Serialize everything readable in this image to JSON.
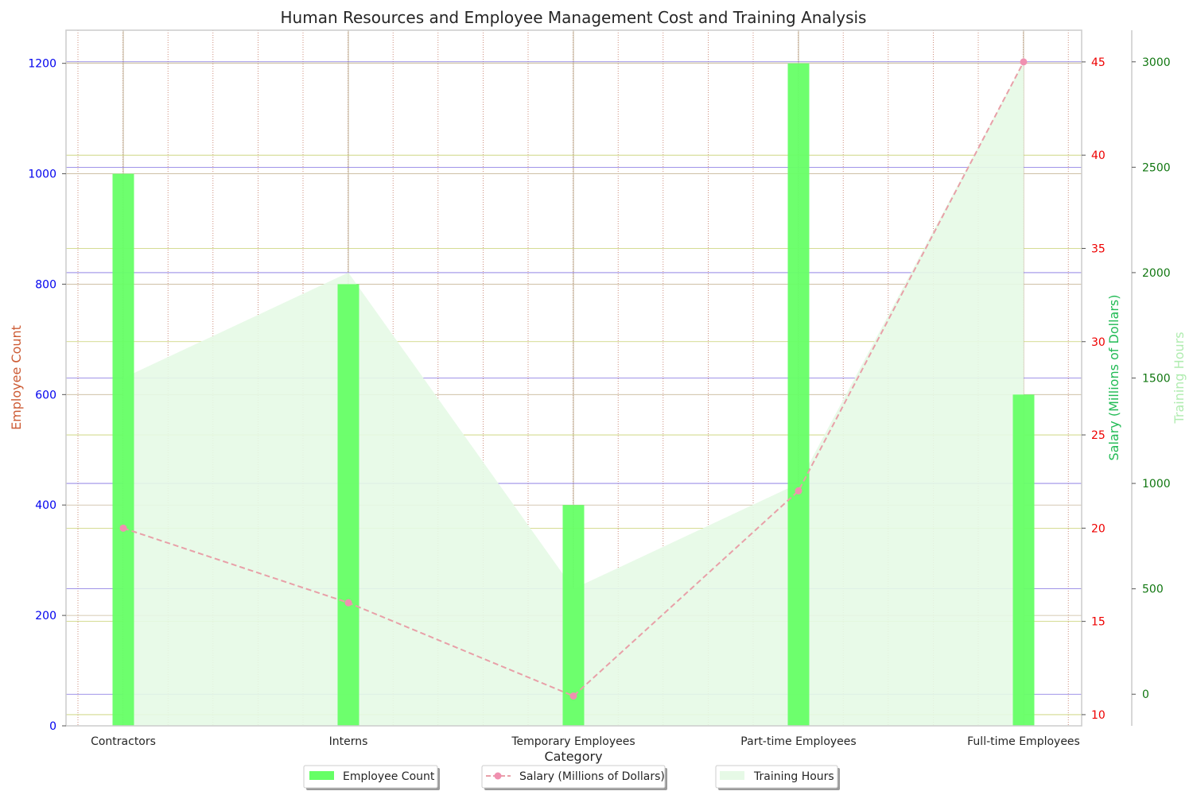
{
  "chart_data": {
    "type": "bar",
    "title": "Human Resources and Employee Management Cost and Training Analysis",
    "xlabel": "Category",
    "categories": [
      "Contractors",
      "Interns",
      "Temporary Employees",
      "Part-time Employees",
      "Full-time Employees"
    ],
    "series": [
      {
        "name": "Employee Count",
        "type": "bar",
        "axis": "left",
        "values": [
          1000,
          800,
          400,
          1200,
          600
        ]
      },
      {
        "name": "Salary (Millions of Dollars)",
        "type": "line",
        "axis": "right1",
        "values": [
          20,
          16,
          11,
          22,
          45
        ]
      },
      {
        "name": "Training Hours",
        "type": "area",
        "axis": "right2",
        "values": [
          1500,
          2000,
          500,
          1000,
          3000
        ]
      }
    ],
    "axes": {
      "left": {
        "label": "Employee Count",
        "ylim": [
          0,
          1260
        ],
        "ticks": [
          0,
          200,
          400,
          600,
          800,
          1000,
          1200
        ]
      },
      "right1": {
        "label": "Salary (Millions of Dollars)",
        "ylim": [
          9.4,
          46.7
        ],
        "ticks": [
          10,
          15,
          20,
          25,
          30,
          35,
          40,
          45
        ]
      },
      "right2": {
        "label": "Training Hours",
        "ylim": [
          -150,
          3150
        ],
        "ticks": [
          0,
          500,
          1000,
          1500,
          2000,
          2500,
          3000
        ]
      }
    },
    "legend": {
      "placement": "bottom-center",
      "entries": [
        "Employee Count",
        "Salary (Millions of Dollars)",
        "Training Hours"
      ]
    },
    "grid": true,
    "colors": {
      "bar": "#66ff66",
      "line": "#e8a0a8",
      "marker": "#f090b0",
      "area": "#e6f9e6",
      "left_tick": "#0000ee",
      "left_label": "#cc5a33",
      "right1_tick": "#ee0000",
      "right1_label": "#22bb55",
      "right2_tick": "#117711",
      "right2_label": "#b0ecb0"
    }
  }
}
